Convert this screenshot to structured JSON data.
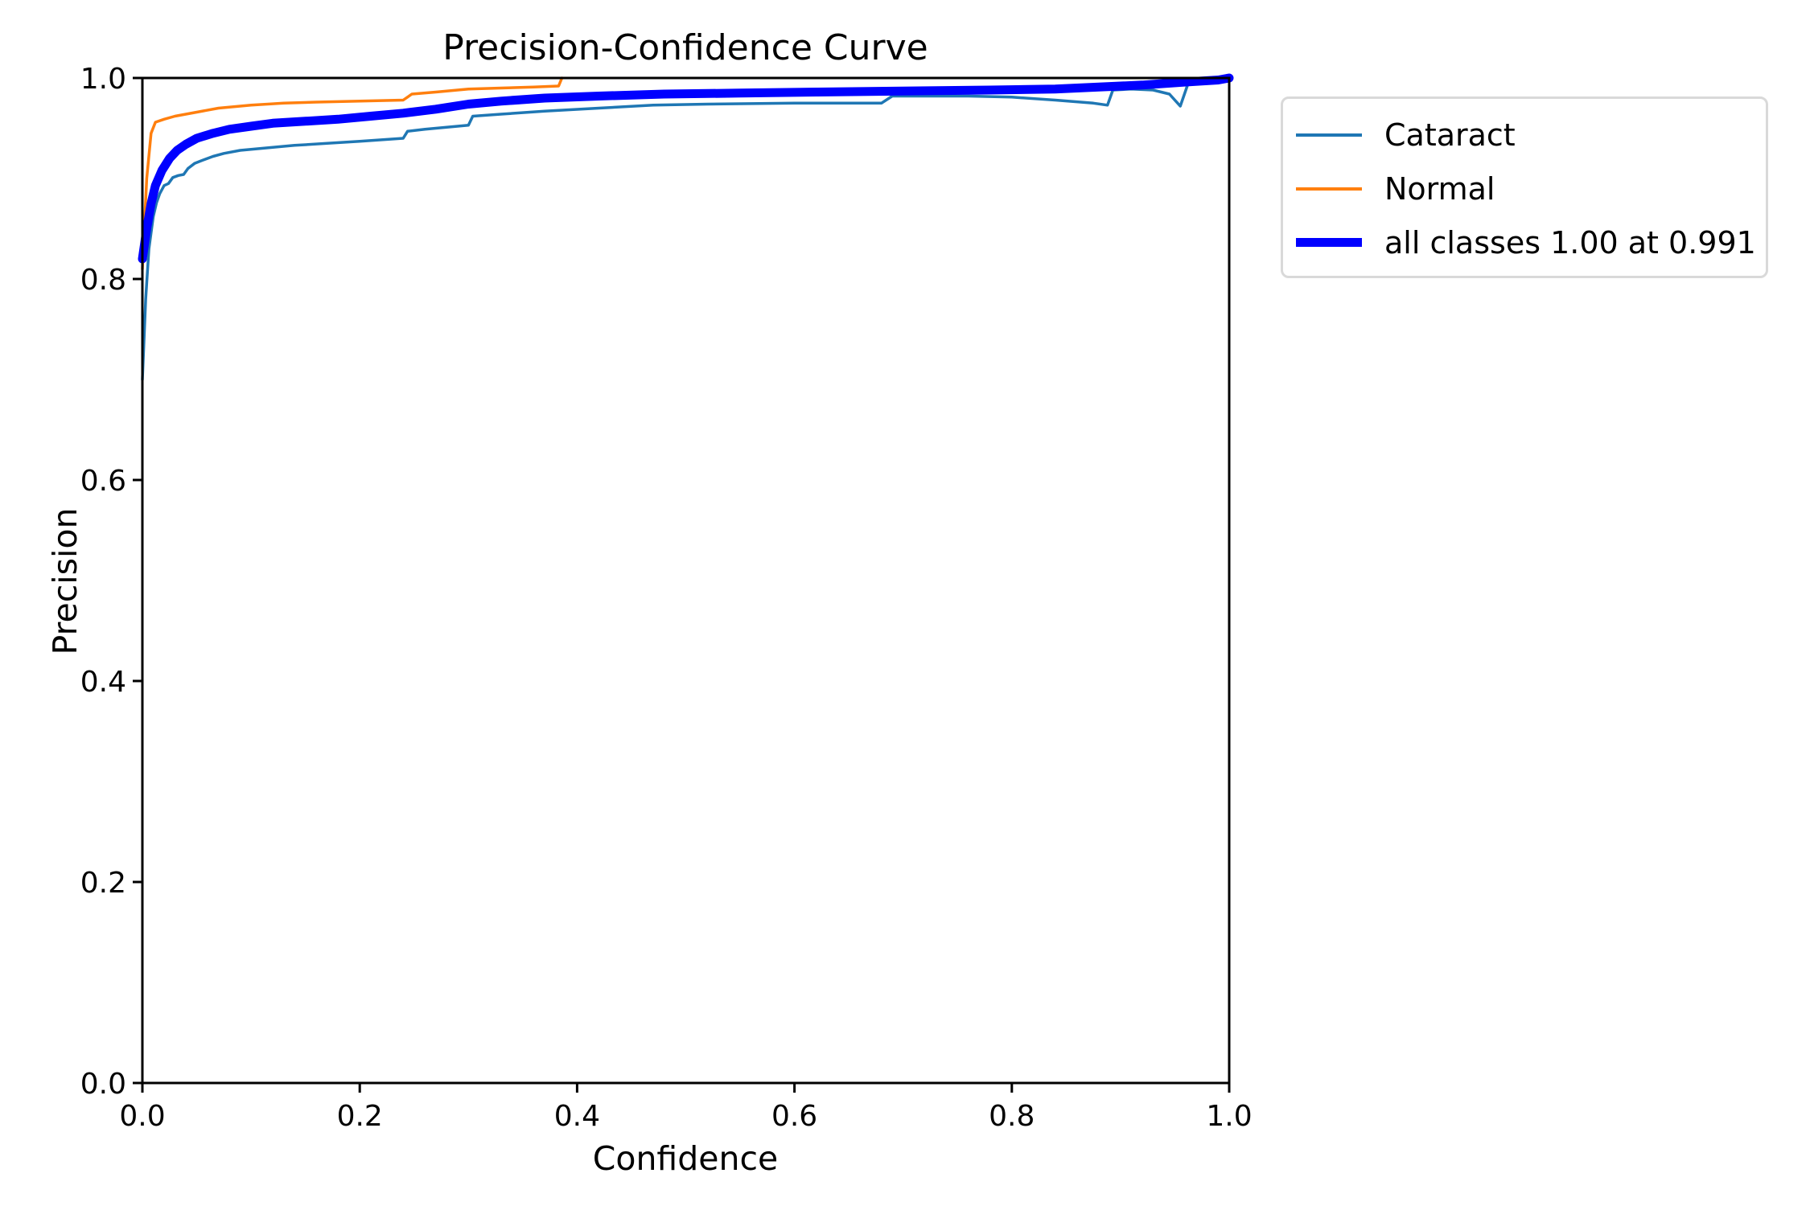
{
  "chart_data": {
    "type": "line",
    "title": "Precision-Confidence Curve",
    "xlabel": "Confidence",
    "ylabel": "Precision",
    "xlim": [
      0.0,
      1.0
    ],
    "ylim": [
      0.0,
      1.0
    ],
    "xticks": [
      "0.0",
      "0.2",
      "0.4",
      "0.6",
      "0.8",
      "1.0"
    ],
    "yticks": [
      "0.0",
      "0.2",
      "0.4",
      "0.6",
      "0.8",
      "1.0"
    ],
    "grid": false,
    "legend_position": "outside-upper-right",
    "annotation": {
      "best_precision": "1.00",
      "best_confidence": "0.991"
    },
    "series": [
      {
        "name": "Cataract",
        "legend_label": "Cataract",
        "color": "#1f77b4",
        "linewidth": "thin",
        "points": [
          [
            0.0,
            0.7
          ],
          [
            0.003,
            0.78
          ],
          [
            0.006,
            0.83
          ],
          [
            0.01,
            0.862
          ],
          [
            0.013,
            0.876
          ],
          [
            0.016,
            0.885
          ],
          [
            0.02,
            0.893
          ],
          [
            0.024,
            0.895
          ],
          [
            0.028,
            0.901
          ],
          [
            0.033,
            0.903
          ],
          [
            0.038,
            0.904
          ],
          [
            0.042,
            0.91
          ],
          [
            0.048,
            0.915
          ],
          [
            0.055,
            0.918
          ],
          [
            0.065,
            0.922
          ],
          [
            0.075,
            0.925
          ],
          [
            0.09,
            0.928
          ],
          [
            0.11,
            0.93
          ],
          [
            0.14,
            0.933
          ],
          [
            0.17,
            0.935
          ],
          [
            0.2,
            0.937
          ],
          [
            0.24,
            0.94
          ],
          [
            0.244,
            0.947
          ],
          [
            0.26,
            0.949
          ],
          [
            0.29,
            0.952
          ],
          [
            0.3,
            0.953
          ],
          [
            0.304,
            0.962
          ],
          [
            0.33,
            0.964
          ],
          [
            0.37,
            0.967
          ],
          [
            0.42,
            0.97
          ],
          [
            0.47,
            0.973
          ],
          [
            0.52,
            0.974
          ],
          [
            0.6,
            0.975
          ],
          [
            0.68,
            0.975
          ],
          [
            0.69,
            0.982
          ],
          [
            0.76,
            0.982
          ],
          [
            0.8,
            0.981
          ],
          [
            0.84,
            0.978
          ],
          [
            0.875,
            0.975
          ],
          [
            0.888,
            0.973
          ],
          [
            0.893,
            0.988
          ],
          [
            0.91,
            0.989
          ],
          [
            0.93,
            0.988
          ],
          [
            0.945,
            0.984
          ],
          [
            0.955,
            0.972
          ],
          [
            0.962,
            0.994
          ],
          [
            0.975,
            0.998
          ],
          [
            1.0,
            1.0
          ]
        ]
      },
      {
        "name": "Normal",
        "legend_label": "Normal",
        "color": "#ff7f0e",
        "linewidth": "thin",
        "points": [
          [
            0.0,
            0.81
          ],
          [
            0.004,
            0.9
          ],
          [
            0.008,
            0.945
          ],
          [
            0.012,
            0.956
          ],
          [
            0.02,
            0.959
          ],
          [
            0.03,
            0.962
          ],
          [
            0.05,
            0.966
          ],
          [
            0.07,
            0.97
          ],
          [
            0.1,
            0.973
          ],
          [
            0.13,
            0.975
          ],
          [
            0.16,
            0.976
          ],
          [
            0.2,
            0.977
          ],
          [
            0.24,
            0.978
          ],
          [
            0.248,
            0.984
          ],
          [
            0.27,
            0.986
          ],
          [
            0.3,
            0.989
          ],
          [
            0.33,
            0.99
          ],
          [
            0.36,
            0.991
          ],
          [
            0.383,
            0.992
          ],
          [
            0.386,
            1.0
          ]
        ]
      },
      {
        "name": "all classes",
        "legend_label": "all classes 1.00 at 0.991",
        "color": "#0000ff",
        "linewidth": "thick",
        "points": [
          [
            0.0,
            0.82
          ],
          [
            0.004,
            0.85
          ],
          [
            0.008,
            0.875
          ],
          [
            0.012,
            0.893
          ],
          [
            0.018,
            0.908
          ],
          [
            0.025,
            0.92
          ],
          [
            0.032,
            0.928
          ],
          [
            0.04,
            0.934
          ],
          [
            0.05,
            0.94
          ],
          [
            0.065,
            0.945
          ],
          [
            0.08,
            0.949
          ],
          [
            0.1,
            0.952
          ],
          [
            0.12,
            0.955
          ],
          [
            0.15,
            0.957
          ],
          [
            0.18,
            0.959
          ],
          [
            0.21,
            0.962
          ],
          [
            0.24,
            0.965
          ],
          [
            0.27,
            0.969
          ],
          [
            0.3,
            0.974
          ],
          [
            0.33,
            0.977
          ],
          [
            0.37,
            0.98
          ],
          [
            0.42,
            0.982
          ],
          [
            0.48,
            0.984
          ],
          [
            0.55,
            0.985
          ],
          [
            0.62,
            0.986
          ],
          [
            0.7,
            0.987
          ],
          [
            0.78,
            0.988
          ],
          [
            0.84,
            0.989
          ],
          [
            0.88,
            0.991
          ],
          [
            0.92,
            0.993
          ],
          [
            0.96,
            0.996
          ],
          [
            0.99,
            0.998
          ],
          [
            1.0,
            1.0
          ]
        ]
      }
    ]
  }
}
